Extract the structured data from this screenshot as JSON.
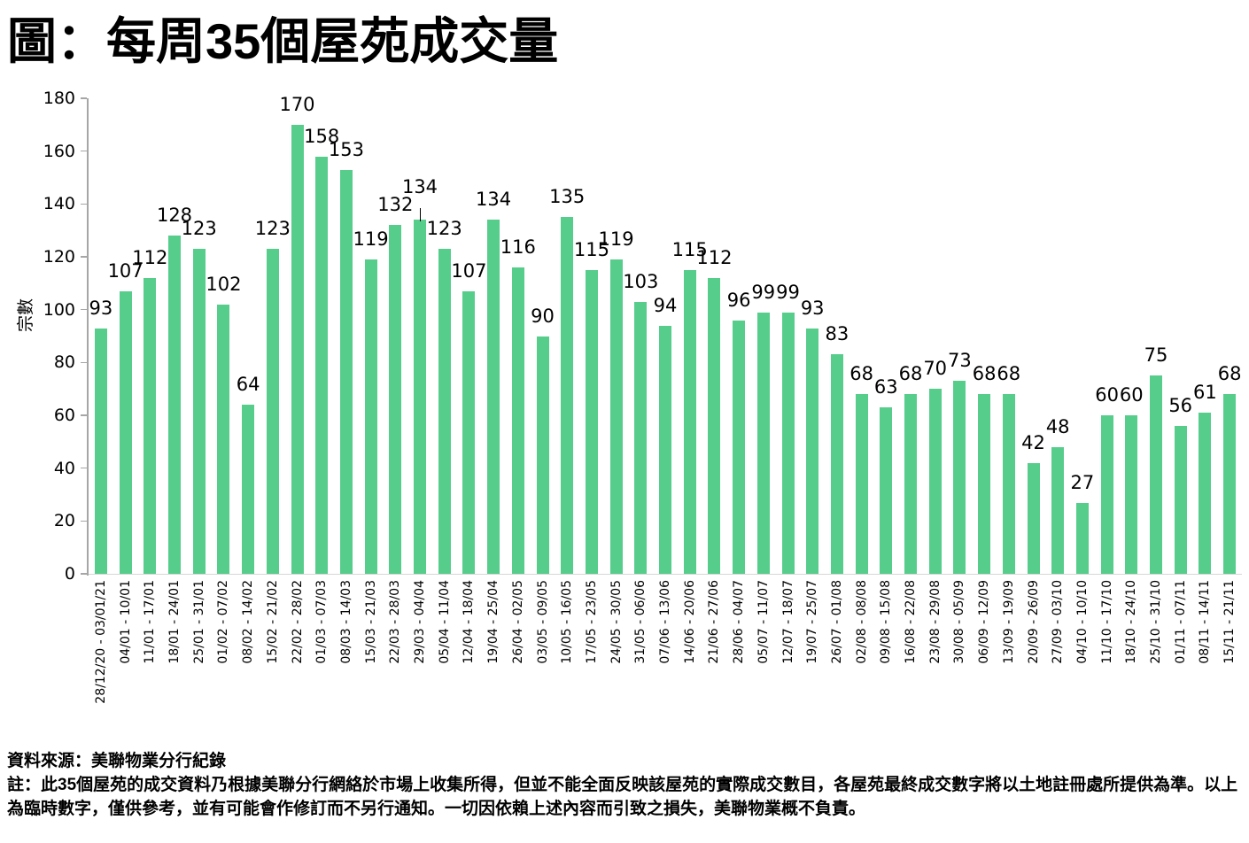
{
  "title": "圖：每周35個屋苑成交量",
  "chart_data": {
    "type": "bar",
    "title": "圖：每周35個屋苑成交量",
    "xlabel": "",
    "ylabel": "宗數",
    "ylim": [
      0,
      180
    ],
    "yticks": [
      0,
      20,
      40,
      60,
      80,
      100,
      120,
      140,
      160,
      180
    ],
    "grid": false,
    "legend": "none",
    "bar_color": "#57CD8C",
    "axis_color": "#A6A6A6",
    "baseline_color": "#D6D6D6",
    "label_callout_indices": [
      13
    ],
    "categories": [
      "28/12/20 - 03/01/21",
      "04/01 - 10/01",
      "11/01 - 17/01",
      "18/01 - 24/01",
      "25/01 - 31/01",
      "01/02 - 07/02",
      "08/02 - 14/02",
      "15/02 - 21/02",
      "22/02 - 28/02",
      "01/03 - 07/03",
      "08/03 - 14/03",
      "15/03 - 21/03",
      "22/03 - 28/03",
      "29/03 - 04/04",
      "05/04 - 11/04",
      "12/04 - 18/04",
      "19/04 - 25/04",
      "26/04 - 02/05",
      "03/05 - 09/05",
      "10/05 - 16/05",
      "17/05 - 23/05",
      "24/05 - 30/05",
      "31/05 - 06/06",
      "07/06 - 13/06",
      "14/06 - 20/06",
      "21/06 - 27/06",
      "28/06 - 04/07",
      "05/07 - 11/07",
      "12/07 - 18/07",
      "19/07 - 25/07",
      "26/07 - 01/08",
      "02/08 - 08/08",
      "09/08 - 15/08",
      "16/08 - 22/08",
      "23/08 - 29/08",
      "30/08 - 05/09",
      "06/09 - 12/09",
      "13/09 - 19/09",
      "20/09 - 26/09",
      "27/09 - 03/10",
      "04/10 - 10/10",
      "11/10 - 17/10",
      "18/10 - 24/10",
      "25/10 - 31/10",
      "01/11 - 07/11",
      "08/11 - 14/11",
      "15/11 - 21/11"
    ],
    "values": [
      93,
      107,
      112,
      128,
      123,
      102,
      64,
      123,
      170,
      158,
      153,
      119,
      132,
      134,
      123,
      107,
      134,
      116,
      90,
      135,
      115,
      119,
      103,
      94,
      115,
      112,
      96,
      99,
      99,
      93,
      83,
      68,
      63,
      68,
      70,
      73,
      68,
      68,
      42,
      48,
      27,
      60,
      60,
      75,
      56,
      61,
      68
    ]
  },
  "footer": {
    "source": "資料來源：美聯物業分行紀錄",
    "note": "註：此35個屋苑的成交資料乃根據美聯分行網絡於市場上收集所得，但並不能全面反映該屋苑的實際成交數目，各屋苑最終成交數字將以土地註冊處所提供為準。以上為臨時數字，僅供參考，並有可能會作修訂而不另行通知。一切因依賴上述內容而引致之損失，美聯物業概不負責。"
  }
}
